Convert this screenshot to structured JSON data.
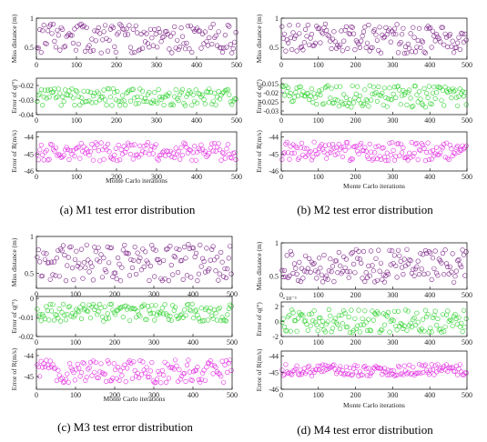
{
  "chart_data": [
    {
      "type": "scatter",
      "caption": "(a)  M1 test error distribution",
      "xlabel": "Monte Carlo iterations",
      "xlim": [
        0,
        500
      ],
      "xticks": [
        "0",
        "100",
        "200",
        "300",
        "400",
        "500"
      ],
      "panels": [
        {
          "ylabel": "Miss distance (m)",
          "ylim": [
            0.3,
            1.0
          ],
          "yticks": [
            {
              "v": 1,
              "t": "1"
            },
            {
              "v": 0.5,
              "t": "0.5"
            }
          ],
          "color": "#7a1f86",
          "lo": 0.4,
          "hi": 0.9,
          "n": 150,
          "seed": 11
        },
        {
          "ylabel": "Error of q(°)",
          "ylim": [
            -0.04,
            -0.015
          ],
          "yticks": [
            {
              "v": -0.02,
              "t": "-0.02"
            },
            {
              "v": -0.03,
              "t": "-0.03"
            },
            {
              "v": -0.04,
              "t": "-0.04"
            }
          ],
          "color": "#2ed12e",
          "lo": -0.034,
          "hi": -0.022,
          "n": 150,
          "seed": 12
        },
        {
          "ylabel": "Error of R(m/s)",
          "ylim": [
            -46,
            -43.7
          ],
          "yticks": [
            {
              "v": -44,
              "t": "-44"
            },
            {
              "v": -45,
              "t": "-45"
            },
            {
              "v": -46,
              "t": "-46"
            }
          ],
          "color": "#e22ee2",
          "lo": -45.4,
          "hi": -44.3,
          "n": 150,
          "seed": 13
        }
      ]
    },
    {
      "type": "scatter",
      "caption": "(b)  M2 test error distribution",
      "xlabel": "Monte Carlo iterations",
      "xlim": [
        0,
        500
      ],
      "xticks": [
        "0",
        "100",
        "200",
        "300",
        "400",
        "500"
      ],
      "panels": [
        {
          "ylabel": "Miss distance (m)",
          "ylim": [
            0.3,
            1.0
          ],
          "yticks": [
            {
              "v": 1,
              "t": "1"
            },
            {
              "v": 0.5,
              "t": "0.5"
            }
          ],
          "color": "#7a1f86",
          "lo": 0.4,
          "hi": 0.9,
          "n": 150,
          "seed": 21
        },
        {
          "ylabel": "Error of q(°)",
          "ylim": [
            -0.032,
            -0.012
          ],
          "yticks": [
            {
              "v": -0.015,
              "t": "-0.015"
            },
            {
              "v": -0.02,
              "t": "-0.02"
            },
            {
              "v": -0.025,
              "t": "-0.025"
            },
            {
              "v": -0.03,
              "t": "-0.03"
            }
          ],
          "color": "#2ed12e",
          "lo": -0.028,
          "hi": -0.016,
          "n": 150,
          "seed": 22
        },
        {
          "ylabel": "Error of R(m/s)",
          "ylim": [
            -46,
            -43.7
          ],
          "yticks": [
            {
              "v": -44,
              "t": "-44"
            },
            {
              "v": -45,
              "t": "-45"
            },
            {
              "v": -46,
              "t": "-46"
            }
          ],
          "color": "#e22ee2",
          "lo": -45.4,
          "hi": -44.3,
          "n": 150,
          "seed": 23
        }
      ]
    },
    {
      "type": "scatter",
      "caption": "(c)  M3 test error distribution",
      "xlabel": "Monte Carlo iterations",
      "xlim": [
        0,
        500
      ],
      "xticks": [
        "0",
        "100",
        "200",
        "300",
        "400",
        "500"
      ],
      "panels": [
        {
          "ylabel": "Miss distance (m)",
          "ylim": [
            0.3,
            1.0
          ],
          "yticks": [
            {
              "v": 1,
              "t": "1"
            },
            {
              "v": 0.5,
              "t": "0.5"
            }
          ],
          "color": "#7a1f86",
          "lo": 0.4,
          "hi": 0.9,
          "n": 150,
          "seed": 31
        },
        {
          "ylabel": "Error of q(°)",
          "ylim": [
            -0.02,
            0.001
          ],
          "yticks": [
            {
              "v": 0,
              "t": "0"
            },
            {
              "v": -0.01,
              "t": "-0.01"
            },
            {
              "v": -0.02,
              "t": "-0.02"
            }
          ],
          "color": "#2ed12e",
          "lo": -0.012,
          "hi": -0.003,
          "n": 150,
          "seed": 32
        },
        {
          "ylabel": "Error of R(m/s)",
          "ylim": [
            -45.6,
            -43.7
          ],
          "yticks": [
            {
              "v": -44,
              "t": "-44"
            },
            {
              "v": -45,
              "t": "-45"
            }
          ],
          "color": "#e22ee2",
          "lo": -45.3,
          "hi": -44.2,
          "n": 150,
          "seed": 33
        }
      ]
    },
    {
      "type": "scatter",
      "caption": "(d)  M4 test error distribution",
      "xlabel": "Monte Carlo iterations",
      "xlim": [
        0,
        500
      ],
      "xticks": [
        "0",
        "100",
        "200",
        "300",
        "400",
        "500"
      ],
      "panels": [
        {
          "ylabel": "Miss distance (m)",
          "ylim": [
            0.3,
            1.0
          ],
          "yticks": [
            {
              "v": 1,
              "t": "1"
            },
            {
              "v": 0.5,
              "t": "0.5"
            }
          ],
          "color": "#7a1f86",
          "lo": 0.4,
          "hi": 0.9,
          "n": 150,
          "seed": 41
        },
        {
          "ylabel": "Error of q(°)",
          "ylim": [
            -2,
            2.6
          ],
          "yticks": [
            {
              "v": 2,
              "t": "2"
            },
            {
              "v": 0,
              "t": "0"
            },
            {
              "v": -2,
              "t": "-2"
            }
          ],
          "exponent": "×10⁻³",
          "color": "#2ed12e",
          "lo": -1.5,
          "hi": 1.6,
          "n": 150,
          "seed": 42
        },
        {
          "ylabel": "Error of R(m/s)",
          "ylim": [
            -46,
            -43.7
          ],
          "yticks": [
            {
              "v": -44,
              "t": "-44"
            },
            {
              "v": -45,
              "t": "-45"
            },
            {
              "v": -46,
              "t": "-46"
            }
          ],
          "color": "#e22ee2",
          "lo": -45.2,
          "hi": -44.5,
          "n": 150,
          "seed": 43
        }
      ]
    }
  ]
}
